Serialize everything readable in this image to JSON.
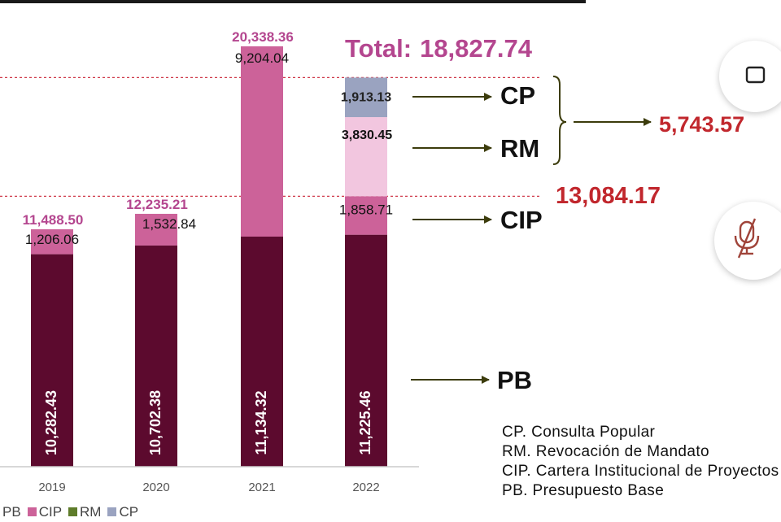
{
  "total_label": "Total:",
  "total_value": "18,827.74",
  "callouts": {
    "cp": "CP",
    "rm": "RM",
    "cip": "CIP",
    "pb": "PB"
  },
  "bracket_value": "5,743.57",
  "reference_value": "13,084.17",
  "glossary": [
    "CP. Consulta Popular",
    "RM. Revocación de Mandato",
    "CIP. Cartera Institucional de Proyectos",
    "PB. Presupuesto Base"
  ],
  "colors": {
    "PB": "#5c0a2e",
    "CIP": "#cc6299",
    "RM": "#f2c6df",
    "CP": "#9aa3c0",
    "total_label": "#b4468f",
    "highlight": "#c1272d",
    "reference_line": "#cf3a4a",
    "arrow": "#3c3c0c"
  },
  "controls": {
    "top_button_icon": "square-icon",
    "mic_button_icon": "mic-off-icon"
  },
  "chart_data": {
    "type": "bar",
    "stacked": true,
    "categories": [
      "2019",
      "2020",
      "2021",
      "2022"
    ],
    "series": [
      {
        "name": "PB",
        "values": [
          10282.43,
          10702.38,
          11134.32,
          11225.46
        ]
      },
      {
        "name": "CIP",
        "values": [
          1206.06,
          1532.84,
          9204.04,
          1858.71
        ]
      },
      {
        "name": "RM",
        "values": [
          0,
          0,
          0,
          3830.45
        ]
      },
      {
        "name": "CP",
        "values": [
          0,
          0,
          0,
          1913.13
        ]
      }
    ],
    "totals": [
      "11,488.50",
      "12,235.21",
      "20,338.36",
      ""
    ],
    "pb_labels": [
      "10,282.43",
      "10,702.38",
      "11,134.32",
      "11,225.46"
    ],
    "cip_labels": [
      "1,206.06",
      "1,532.84",
      "9,204.04",
      "1,858.71"
    ],
    "rm_labels": [
      "",
      "",
      "",
      "3,830.45"
    ],
    "cp_labels": [
      "",
      "",
      "",
      "1,913.13"
    ],
    "reference_lines": [
      18827.74,
      13084.17
    ],
    "legend": [
      "PB",
      "CIP",
      "RM",
      "CP"
    ],
    "ylim": [
      0,
      20338.36
    ],
    "grid": false,
    "legend_position": "bottom-left"
  }
}
